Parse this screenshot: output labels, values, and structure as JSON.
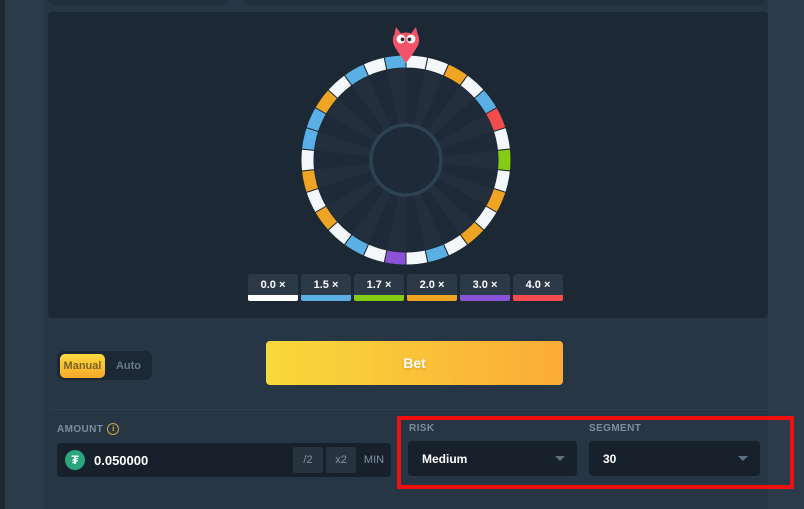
{
  "wheel": {
    "segment_count": 30,
    "segments": [
      "white",
      "white",
      "orange",
      "white",
      "blue",
      "red",
      "white",
      "green",
      "white",
      "orange",
      "white",
      "orange",
      "white",
      "blue",
      "white",
      "purple",
      "white",
      "blue",
      "white",
      "orange",
      "white",
      "orange",
      "white",
      "blue",
      "blue",
      "orange",
      "white",
      "blue",
      "white",
      "blue"
    ],
    "colors": {
      "white": "#f4f7f9",
      "blue": "#5ab0e4",
      "green": "#85cc15",
      "orange": "#f0a424",
      "purple": "#8a52d6",
      "red": "#f24c4c"
    },
    "interior": {
      "wedge_dark": "#1e2a38",
      "wedge_light": "#232f3d",
      "hub_stroke": "#2d4252",
      "ring_gap": "#1c2834"
    },
    "pointer": {
      "kind": "owl-mascot",
      "body_color": "#f25368",
      "eye_color": "#ffffff",
      "pupil_color": "#33262b"
    }
  },
  "legend": {
    "items": [
      {
        "label": "0.0 ×",
        "color": "#ffffff"
      },
      {
        "label": "1.5 ×",
        "color": "#5ab0e4"
      },
      {
        "label": "1.7 ×",
        "color": "#85cc15"
      },
      {
        "label": "2.0 ×",
        "color": "#f0a424"
      },
      {
        "label": "3.0 ×",
        "color": "#8a52d6"
      },
      {
        "label": "4.0 ×",
        "color": "#f24c4c"
      }
    ]
  },
  "bet_controls": {
    "manual_label": "Manual",
    "auto_label": "Auto",
    "bet_label": "Bet"
  },
  "amount": {
    "label": "AMOUNT",
    "info_icon": "i",
    "currency_icon": "tether",
    "currency_glyph": "₮",
    "value": "0.050000",
    "half_label": "/2",
    "double_label": "x2",
    "min_label": "MIN"
  },
  "risk": {
    "label": "RISK",
    "value": "Medium"
  },
  "segment": {
    "label": "SEGMENT",
    "value": "30"
  },
  "annotation": {
    "highlight_color": "#f10e0e"
  }
}
